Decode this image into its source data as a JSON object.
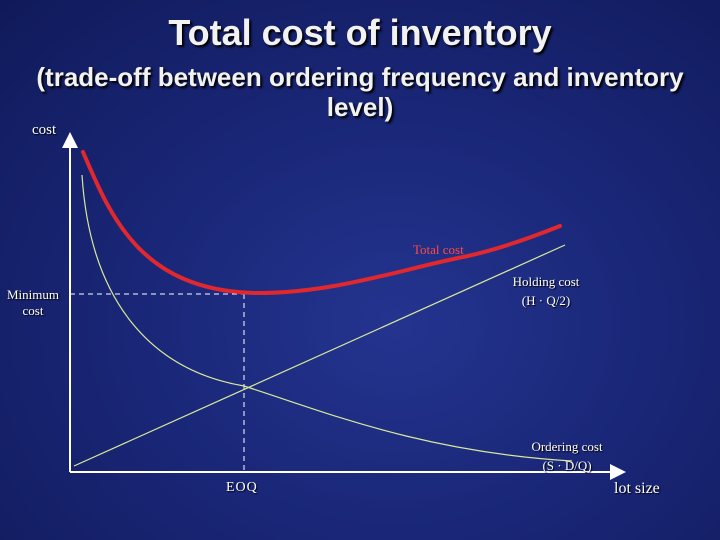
{
  "slide": {
    "title": "Total cost of inventory",
    "subtitle_line1": "(trade-off between ordering frequency and inventory",
    "subtitle_line2": "level)"
  },
  "labels": {
    "y_axis": "cost",
    "x_axis": "lot size",
    "eoq": "EOQ",
    "minimum_cost_line1": "Minimum",
    "minimum_cost_line2": "cost",
    "total_cost": "Total cost",
    "holding_cost_line1": "Holding cost",
    "holding_cost_line2": "(H · Q/2)",
    "ordering_cost_line1": "Ordering cost",
    "ordering_cost_line2": "(S · D/Q)"
  },
  "colors": {
    "total_cost_curve": "#e0282e",
    "component_curves": "#d9e89a",
    "axes": "#ffffff",
    "guides": "#ffffff"
  }
}
